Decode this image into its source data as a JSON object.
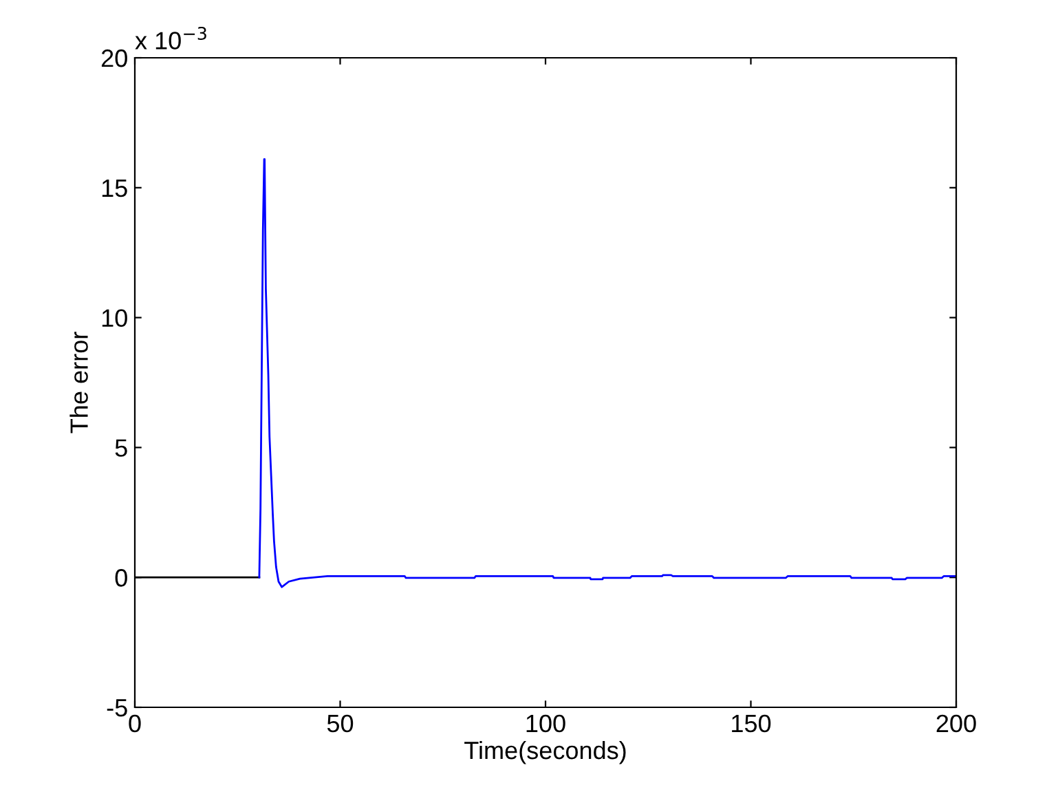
{
  "chart_data": {
    "type": "line",
    "xlabel": "Time(seconds)",
    "ylabel": "The error",
    "annotations": [
      "x 10$^{−3}$"
    ],
    "xlim": [
      0,
      200
    ],
    "xticks": [
      0,
      50,
      100,
      150,
      200
    ],
    "ylim": [
      -5,
      20
    ],
    "yticks": [
      -5,
      0,
      5,
      10,
      15,
      20
    ],
    "grid": false,
    "legend": false,
    "marker": "none",
    "line_style": "solid",
    "series": [
      {
        "color": "#000000",
        "x": [
          0,
          30.3
        ],
        "values": [
          0,
          0
        ]
      },
      {
        "color": "#0000ff",
        "x": [
          30.3,
          30.6,
          30.9,
          31.2,
          31.5,
          31.6,
          31.9,
          32.5,
          32.8,
          33.2,
          33.6,
          33.9,
          34.4,
          35.0,
          35.8,
          37.5,
          40.2,
          46.9,
          65.7,
          66,
          82.7,
          83,
          101.8,
          102,
          110.9,
          111,
          113.9,
          114,
          120.6,
          121,
          128.4,
          128.6,
          130.6,
          131,
          140.6,
          141,
          158.5,
          159,
          174.2,
          174.5,
          184.3,
          184.5,
          187.6,
          188,
          196.5,
          197,
          200
        ],
        "values": [
          0,
          2.65,
          8.0,
          13.4,
          16.1,
          16.1,
          11.1,
          7.8,
          5.4,
          3.9,
          2.4,
          1.4,
          0.4,
          -0.16,
          -0.37,
          -0.16,
          -0.05,
          0.05,
          0.05,
          -0.02,
          -0.02,
          0.05,
          0.05,
          -0.02,
          -0.02,
          -0.07,
          -0.07,
          -0.02,
          -0.02,
          0.05,
          0.05,
          0.09,
          0.09,
          0.05,
          0.05,
          -0.02,
          -0.02,
          0.05,
          0.05,
          -0.02,
          -0.02,
          -0.07,
          -0.07,
          -0.02,
          -0.02,
          0.05,
          0.05
        ]
      }
    ]
  }
}
